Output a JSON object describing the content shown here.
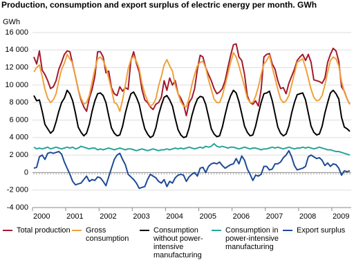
{
  "chart_data": {
    "type": "line",
    "title": "Production, consumption and export surplus of electric energy per month. GWh",
    "ylabel": "GWh",
    "categories": [
      "2000",
      null,
      null,
      null,
      null,
      null,
      null,
      null,
      null,
      null,
      null,
      null,
      "2001",
      null,
      null,
      null,
      null,
      null,
      null,
      null,
      null,
      null,
      null,
      null,
      "2002",
      null,
      null,
      null,
      null,
      null,
      null,
      null,
      null,
      null,
      null,
      null,
      "2003",
      null,
      null,
      null,
      null,
      null,
      null,
      null,
      null,
      null,
      null,
      null,
      "2004",
      null,
      null,
      null,
      null,
      null,
      null,
      null,
      null,
      null,
      null,
      null,
      "2005",
      null,
      null,
      null,
      null,
      null,
      null,
      null,
      null,
      null,
      null,
      null,
      "2006",
      null,
      null,
      null,
      null,
      null,
      null,
      null,
      null,
      null,
      null,
      null,
      "2007",
      null,
      null,
      null,
      null,
      null,
      null,
      null,
      null,
      null,
      null,
      null,
      "2008",
      null,
      null,
      null,
      null,
      null,
      null,
      null,
      null,
      null,
      null,
      null,
      "2009",
      null,
      null,
      null,
      null,
      null,
      null
    ],
    "ylim": [
      -4000,
      16000
    ],
    "yticks": [
      {
        "value": -4000,
        "label": "-4 000"
      },
      {
        "value": -2000,
        "label": "-2 000"
      },
      0,
      {
        "value": 2000,
        "label": "2 000"
      },
      {
        "value": 4000,
        "label": "4 000"
      },
      {
        "value": 6000,
        "label": "6 000"
      },
      {
        "value": 8000,
        "label": "8 000"
      },
      {
        "value": 10000,
        "label": "10 000"
      },
      {
        "value": 12000,
        "label": "12 000"
      },
      {
        "value": 14000,
        "label": "14 000"
      },
      {
        "value": 16000,
        "label": "16 000"
      }
    ],
    "grid": true,
    "legend": "bottom",
    "series": [
      {
        "name": "Total production",
        "color": "#a3192b",
        "values": [
          13200,
          12400,
          13900,
          11700,
          11200,
          10500,
          9600,
          9800,
          10500,
          11800,
          12600,
          13500,
          13900,
          13800,
          12400,
          11000,
          9500,
          8300,
          7500,
          7000,
          8500,
          9500,
          11000,
          13800,
          13800,
          13200,
          11400,
          11600,
          9700,
          9000,
          8800,
          9800,
          9300,
          9700,
          9500,
          12800,
          13800,
          12500,
          11500,
          9500,
          8300,
          8000,
          7500,
          7200,
          7800,
          8000,
          8600,
          10500,
          9400,
          10800,
          10000,
          10500,
          9000,
          8500,
          7800,
          6500,
          8000,
          8500,
          9600,
          11800,
          13400,
          13200,
          12000,
          11200,
          10500,
          9600,
          9000,
          9200,
          9600,
          10500,
          12000,
          13400,
          14600,
          14700,
          13200,
          12800,
          11200,
          8800,
          8000,
          7800,
          8200,
          7600,
          9500,
          13200,
          13500,
          13600,
          12400,
          11800,
          10500,
          9600,
          9700,
          9000,
          10200,
          11000,
          11800,
          12800,
          13200,
          13500,
          12800,
          13500,
          12600,
          10600,
          10500,
          10400,
          10200,
          10800,
          12600,
          13500,
          14200,
          13900,
          12700,
          9800,
          9300,
          8400,
          7800
        ]
      },
      {
        "name": "Gross consumption",
        "color": "#f0a03a",
        "values": [
          11500,
          12000,
          12300,
          11000,
          9500,
          8500,
          8000,
          8300,
          9000,
          10500,
          11800,
          12500,
          13500,
          13000,
          12500,
          11000,
          9500,
          8500,
          7800,
          8000,
          8800,
          10300,
          11800,
          13000,
          13200,
          12800,
          12000,
          10800,
          9500,
          8000,
          7800,
          7000,
          8300,
          10000,
          11800,
          12900,
          13300,
          12700,
          11900,
          10200,
          9000,
          8200,
          7600,
          7800,
          8400,
          9900,
          11000,
          12300,
          12900,
          12200,
          11600,
          10000,
          9000,
          8100,
          7600,
          7500,
          8500,
          10000,
          11200,
          12200,
          12600,
          12700,
          12000,
          10600,
          9500,
          8400,
          8000,
          8000,
          8800,
          10000,
          11300,
          12600,
          13700,
          13200,
          12200,
          11000,
          9800,
          8500,
          8000,
          8000,
          8700,
          9800,
          11200,
          12400,
          12800,
          13400,
          12000,
          10800,
          9500,
          8400,
          8000,
          8200,
          8800,
          10000,
          11300,
          12600,
          12800,
          13000,
          12000,
          10800,
          9500,
          8600,
          8200,
          8300,
          8800,
          10000,
          11500,
          12800,
          13200,
          13000,
          12200,
          10400,
          9200,
          8400,
          7800
        ]
      },
      {
        "name": "Consumption without power-intensive manufacturing",
        "color": "#000000",
        "values": [
          8800,
          8200,
          8300,
          7000,
          5500,
          5000,
          4500,
          4800,
          5800,
          7000,
          8000,
          8500,
          9400,
          9000,
          8200,
          6800,
          5200,
          4600,
          4200,
          4500,
          5500,
          7000,
          8200,
          9000,
          9100,
          8800,
          8000,
          6500,
          5100,
          4500,
          4200,
          4300,
          5300,
          6800,
          8000,
          9000,
          9200,
          8600,
          7800,
          6300,
          5000,
          4400,
          4000,
          4200,
          5100,
          6600,
          7700,
          8600,
          8800,
          8300,
          7600,
          6200,
          4900,
          4300,
          4000,
          4100,
          5100,
          6500,
          7600,
          8400,
          8700,
          8600,
          7800,
          6400,
          5000,
          4400,
          4100,
          4200,
          5200,
          6600,
          7900,
          8800,
          9400,
          9100,
          8100,
          6700,
          5300,
          4600,
          4200,
          4300,
          5300,
          6700,
          8000,
          9000,
          9100,
          9300,
          8200,
          6700,
          5200,
          4500,
          4200,
          4400,
          5300,
          6800,
          8000,
          8900,
          9000,
          9100,
          8300,
          6800,
          5300,
          4600,
          4300,
          4400,
          5300,
          6800,
          8000,
          9100,
          9400,
          9000,
          8400,
          6300,
          5200,
          5000,
          4700
        ]
      },
      {
        "name": "Consumption in power-intensive manufacturing",
        "color": "#2aa499",
        "values": [
          2900,
          2700,
          2800,
          2700,
          2800,
          2900,
          2700,
          2800,
          2900,
          2800,
          2700,
          2800,
          2900,
          2800,
          2900,
          2700,
          2800,
          3000,
          2900,
          2800,
          2700,
          2800,
          2800,
          2600,
          2700,
          2600,
          2700,
          2800,
          2700,
          2600,
          2700,
          2800,
          2700,
          2600,
          2700,
          2700,
          2600,
          2500,
          2600,
          2700,
          2600,
          2500,
          2600,
          2700,
          2600,
          2500,
          2600,
          2600,
          2700,
          2600,
          2700,
          2800,
          2700,
          2800,
          2700,
          2800,
          2900,
          2800,
          2700,
          2800,
          2900,
          2800,
          3000,
          2900,
          3000,
          3300,
          3000,
          2900,
          3000,
          2900,
          2800,
          2900,
          2900,
          2800,
          2700,
          2800,
          2900,
          2800,
          2700,
          2800,
          2800,
          2700,
          2600,
          2700,
          2700,
          2800,
          2900,
          2800,
          2900,
          2800,
          2700,
          2800,
          2900,
          2800,
          2700,
          2800,
          2800,
          2900,
          2800,
          2900,
          2800,
          2700,
          2800,
          2900,
          2800,
          2700,
          2600,
          2600,
          2500,
          2400,
          2400,
          2300,
          2200,
          2100,
          2000
        ]
      },
      {
        "name": "Export surplus",
        "color": "#1c4a96",
        "values": [
          500,
          600,
          1800,
          2000,
          1500,
          2200,
          2300,
          2200,
          2300,
          2400,
          2100,
          1200,
          500,
          -200,
          -1000,
          -1400,
          -1300,
          -1200,
          -800,
          -400,
          -1000,
          -800,
          -900,
          -500,
          -600,
          -1000,
          -1500,
          -500,
          500,
          1500,
          2000,
          2200,
          1500,
          900,
          -200,
          -500,
          -800,
          -1200,
          -1800,
          -1700,
          -1600,
          -800,
          -200,
          -400,
          -600,
          -1000,
          -1200,
          -800,
          -1600,
          -1000,
          -1200,
          -600,
          -300,
          -200,
          -300,
          -1000,
          -500,
          -200,
          0,
          -400,
          500,
          600,
          0,
          700,
          1000,
          1100,
          1000,
          1200,
          800,
          500,
          700,
          900,
          1000,
          1600,
          1000,
          1900,
          1400,
          400,
          -200,
          -900,
          -300,
          -400,
          -200,
          700,
          700,
          300,
          400,
          1000,
          1000,
          1200,
          1700,
          2000,
          2500,
          1800,
          800,
          300,
          400,
          500,
          700,
          1800,
          2000,
          1800,
          1600,
          1700,
          1400,
          800,
          1100,
          700,
          1000,
          900,
          500,
          -300,
          200,
          100,
          200
        ]
      }
    ]
  }
}
